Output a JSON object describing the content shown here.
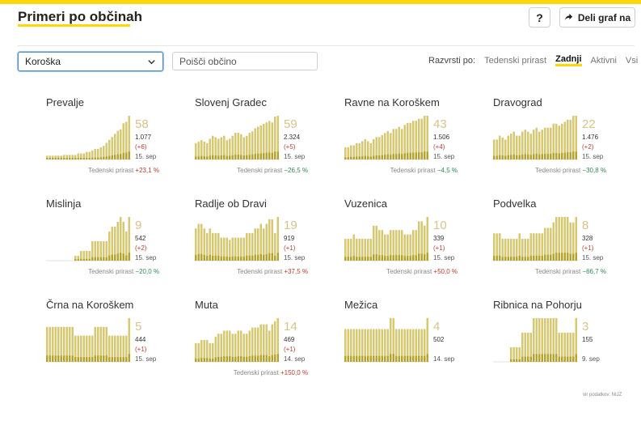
{
  "header": {
    "title": "Primeri po občinah",
    "help_label": "?",
    "share_label": "Deli graf na"
  },
  "controls": {
    "region_selected": "Koroška",
    "search_placeholder": "Poišči občino",
    "sort_label": "Razvrsti po:",
    "sort_options": [
      "Tedenski prirast",
      "Zadnji",
      "Aktivni",
      "Vsi"
    ],
    "sort_active": "Zadnji"
  },
  "weekly_label": "Tedenski prirast",
  "source": "vir podatkov: NIJZ",
  "colors": {
    "accent": "#ffd60a",
    "bar_light": "#d8c870",
    "bar_dark": "#b8a32a",
    "up": "#c0392b",
    "down": "#2e8b57"
  },
  "chart_data": {
    "type": "bar",
    "municipalities": [
      {
        "name": "Prevalje",
        "latest": "58",
        "total": "1.077",
        "delta": "(+6)",
        "date": "15. sep",
        "weekly": "+23,1 %",
        "trend": "up",
        "values": [
          5,
          5,
          5,
          5,
          5,
          5,
          6,
          6,
          6,
          6,
          6,
          8,
          8,
          8,
          10,
          10,
          12,
          14,
          14,
          16,
          18,
          22,
          26,
          30,
          34,
          38,
          40,
          48,
          50,
          58
        ]
      },
      {
        "name": "Slovenj Gradec",
        "latest": "59",
        "total": "2.324",
        "delta": "(+5)",
        "date": "15. sep",
        "weekly": "−26,5 %",
        "trend": "down",
        "values": [
          22,
          24,
          26,
          24,
          22,
          28,
          32,
          30,
          28,
          30,
          32,
          26,
          28,
          32,
          36,
          36,
          34,
          30,
          32,
          36,
          38,
          42,
          44,
          46,
          48,
          50,
          52,
          50,
          58,
          59
        ]
      },
      {
        "name": "Ravne na Koroškem",
        "latest": "43",
        "total": "1.506",
        "delta": "(+4)",
        "date": "15. sep",
        "weekly": "−4,5 %",
        "trend": "down",
        "values": [
          12,
          12,
          14,
          14,
          16,
          16,
          18,
          20,
          18,
          16,
          20,
          22,
          22,
          24,
          26,
          28,
          26,
          30,
          30,
          32,
          30,
          34,
          36,
          36,
          38,
          38,
          40,
          40,
          43,
          43
        ]
      },
      {
        "name": "Dravograd",
        "latest": "22",
        "total": "1.476",
        "delta": "(+2)",
        "date": "15. sep",
        "weekly": "−30,8 %",
        "trend": "down",
        "values": [
          10,
          10,
          12,
          11,
          10,
          12,
          13,
          14,
          12,
          12,
          14,
          15,
          14,
          13,
          15,
          16,
          14,
          15,
          16,
          16,
          16,
          18,
          18,
          17,
          18,
          19,
          20,
          20,
          22,
          22
        ]
      },
      {
        "name": "Mislinja",
        "latest": "9",
        "total": "542",
        "delta": "(+2)",
        "date": "15. sep",
        "weekly": "−20,0 %",
        "trend": "down",
        "values": [
          0,
          0,
          0,
          0,
          0,
          0,
          0,
          0,
          0,
          0,
          1,
          1,
          2,
          2,
          2,
          2,
          4,
          4,
          4,
          4,
          4,
          4,
          6,
          7,
          7,
          8,
          9,
          8,
          6,
          9
        ]
      },
      {
        "name": "Radlje ob Dravi",
        "latest": "19",
        "total": "919",
        "delta": "(+1)",
        "date": "15. sep",
        "weekly": "+37,5 %",
        "trend": "up",
        "values": [
          14,
          16,
          16,
          14,
          12,
          14,
          12,
          12,
          12,
          10,
          10,
          10,
          9,
          10,
          10,
          10,
          10,
          10,
          12,
          12,
          12,
          14,
          14,
          16,
          14,
          16,
          18,
          18,
          12,
          19
        ]
      },
      {
        "name": "Vuzenica",
        "latest": "10",
        "total": "339",
        "delta": "(+1)",
        "date": "15. sep",
        "weekly": "+50,0 %",
        "trend": "up",
        "values": [
          5,
          5,
          5,
          6,
          5,
          5,
          5,
          5,
          5,
          5,
          8,
          8,
          7,
          7,
          6,
          6,
          7,
          7,
          7,
          7,
          7,
          6,
          6,
          6,
          7,
          7,
          9,
          9,
          8,
          10
        ]
      },
      {
        "name": "Podvelka",
        "latest": "8",
        "total": "328",
        "delta": "(+1)",
        "date": "15. sep",
        "weekly": "−66,7 %",
        "trend": "down",
        "values": [
          5,
          5,
          5,
          4,
          4,
          4,
          4,
          4,
          4,
          5,
          4,
          4,
          4,
          5,
          5,
          5,
          5,
          5,
          6,
          6,
          6,
          7,
          8,
          8,
          8,
          8,
          8,
          7,
          7,
          8
        ]
      },
      {
        "name": "Črna na Koroškem",
        "latest": "5",
        "total": "444",
        "delta": "(+1)",
        "date": "15. sep",
        "weekly": "",
        "trend": "none",
        "values": [
          4,
          4,
          4,
          4,
          4,
          4,
          4,
          4,
          4,
          4,
          3,
          3,
          3,
          3,
          3,
          3,
          3,
          4,
          4,
          4,
          4,
          4,
          3,
          3,
          3,
          3,
          3,
          3,
          3,
          5
        ]
      },
      {
        "name": "Muta",
        "latest": "14",
        "total": "469",
        "delta": "(+1)",
        "date": "14. sep",
        "weekly": "+150,0 %",
        "trend": "up",
        "values": [
          6,
          6,
          7,
          7,
          7,
          6,
          6,
          8,
          9,
          9,
          10,
          10,
          10,
          9,
          9,
          10,
          10,
          9,
          9,
          10,
          11,
          11,
          11,
          12,
          12,
          12,
          10,
          12,
          13,
          14
        ]
      },
      {
        "name": "Mežica",
        "latest": "4",
        "total": "502",
        "delta": "",
        "date": "14. sep",
        "weekly": "",
        "trend": "none",
        "values": [
          3,
          3,
          3,
          3,
          3,
          3,
          3,
          3,
          3,
          3,
          3,
          3,
          3,
          3,
          3,
          3,
          4,
          4,
          3,
          3,
          3,
          3,
          3,
          3,
          3,
          3,
          3,
          3,
          3,
          4
        ]
      },
      {
        "name": "Ribnica na Pohorju",
        "latest": "3",
        "total": "155",
        "delta": "",
        "date": "9. sep",
        "weekly": "",
        "trend": "none",
        "values": [
          0,
          0,
          0,
          0,
          0,
          0,
          1,
          1,
          1,
          1,
          2,
          2,
          2,
          2,
          3,
          3,
          3,
          3,
          3,
          3,
          3,
          3,
          3,
          2,
          2,
          2,
          2,
          2,
          2,
          3
        ]
      }
    ]
  }
}
